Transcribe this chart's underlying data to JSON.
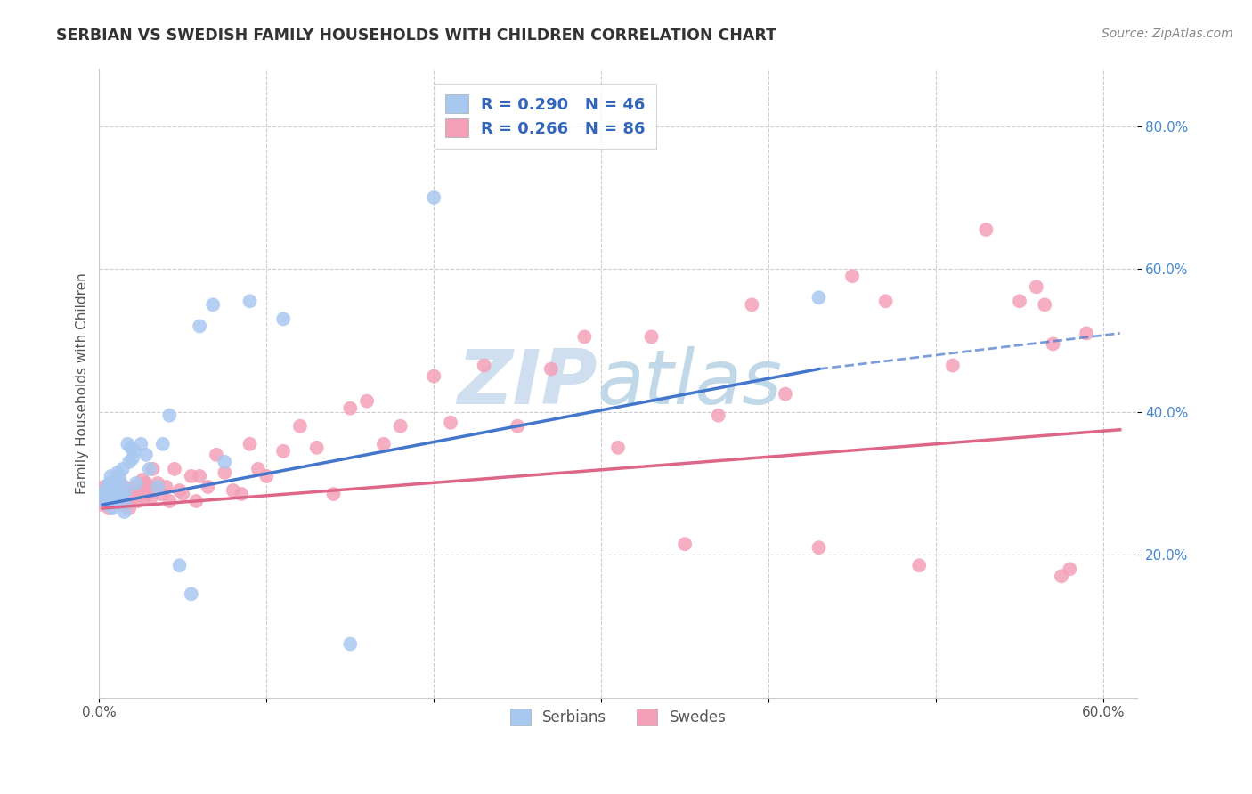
{
  "title": "SERBIAN VS SWEDISH FAMILY HOUSEHOLDS WITH CHILDREN CORRELATION CHART",
  "source": "Source: ZipAtlas.com",
  "ylabel": "Family Households with Children",
  "xlim": [
    0.0,
    0.62
  ],
  "ylim": [
    0.0,
    0.88
  ],
  "xticks": [
    0.0,
    0.1,
    0.2,
    0.3,
    0.4,
    0.5,
    0.6
  ],
  "yticks": [
    0.2,
    0.4,
    0.6,
    0.8
  ],
  "ytick_labels": [
    "20.0%",
    "40.0%",
    "60.0%",
    "80.0%"
  ],
  "xtick_labels": [
    "0.0%",
    "",
    "",
    "",
    "",
    "",
    "60.0%"
  ],
  "serbian_color": "#A8C8F0",
  "swedish_color": "#F4A0B8",
  "trend_serbian_color": "#4477CC",
  "trend_swedish_color": "#DD6688",
  "watermark_text": "ZIPatlas",
  "watermark_color": "#D0DFF0",
  "legend_serbian_label": "R = 0.290   N = 46",
  "legend_swedish_label": "R = 0.266   N = 86",
  "legend_text_color": "#3366BB",
  "bottom_legend_serbians": "Serbians",
  "bottom_legend_swedes": "Swedes",
  "serbian_x": [
    0.002,
    0.003,
    0.004,
    0.005,
    0.005,
    0.006,
    0.006,
    0.007,
    0.007,
    0.008,
    0.008,
    0.009,
    0.01,
    0.01,
    0.011,
    0.011,
    0.012,
    0.012,
    0.013,
    0.013,
    0.014,
    0.015,
    0.015,
    0.016,
    0.017,
    0.018,
    0.019,
    0.02,
    0.021,
    0.022,
    0.025,
    0.028,
    0.03,
    0.035,
    0.038,
    0.042,
    0.048,
    0.055,
    0.06,
    0.068,
    0.075,
    0.09,
    0.11,
    0.15,
    0.2,
    0.43
  ],
  "serbian_y": [
    0.285,
    0.275,
    0.29,
    0.295,
    0.27,
    0.3,
    0.285,
    0.28,
    0.31,
    0.275,
    0.265,
    0.295,
    0.305,
    0.28,
    0.3,
    0.315,
    0.29,
    0.31,
    0.285,
    0.3,
    0.32,
    0.275,
    0.26,
    0.29,
    0.355,
    0.33,
    0.35,
    0.335,
    0.345,
    0.3,
    0.355,
    0.34,
    0.32,
    0.295,
    0.355,
    0.395,
    0.185,
    0.145,
    0.52,
    0.55,
    0.33,
    0.555,
    0.53,
    0.075,
    0.7,
    0.56
  ],
  "swedish_x": [
    0.002,
    0.003,
    0.005,
    0.006,
    0.007,
    0.008,
    0.009,
    0.01,
    0.01,
    0.011,
    0.012,
    0.012,
    0.013,
    0.014,
    0.015,
    0.015,
    0.016,
    0.017,
    0.018,
    0.018,
    0.019,
    0.02,
    0.021,
    0.022,
    0.023,
    0.024,
    0.025,
    0.026,
    0.027,
    0.028,
    0.029,
    0.03,
    0.031,
    0.032,
    0.033,
    0.035,
    0.037,
    0.04,
    0.042,
    0.045,
    0.048,
    0.05,
    0.055,
    0.058,
    0.06,
    0.065,
    0.07,
    0.075,
    0.08,
    0.085,
    0.09,
    0.095,
    0.1,
    0.11,
    0.12,
    0.13,
    0.14,
    0.15,
    0.16,
    0.17,
    0.18,
    0.2,
    0.21,
    0.23,
    0.25,
    0.27,
    0.29,
    0.31,
    0.33,
    0.35,
    0.37,
    0.39,
    0.41,
    0.43,
    0.45,
    0.47,
    0.49,
    0.51,
    0.53,
    0.55,
    0.56,
    0.565,
    0.57,
    0.575,
    0.58,
    0.59
  ],
  "swedish_y": [
    0.27,
    0.295,
    0.28,
    0.265,
    0.29,
    0.285,
    0.275,
    0.3,
    0.28,
    0.285,
    0.275,
    0.295,
    0.285,
    0.27,
    0.28,
    0.295,
    0.285,
    0.275,
    0.285,
    0.265,
    0.29,
    0.28,
    0.285,
    0.295,
    0.275,
    0.285,
    0.29,
    0.305,
    0.28,
    0.3,
    0.285,
    0.295,
    0.28,
    0.32,
    0.29,
    0.3,
    0.285,
    0.295,
    0.275,
    0.32,
    0.29,
    0.285,
    0.31,
    0.275,
    0.31,
    0.295,
    0.34,
    0.315,
    0.29,
    0.285,
    0.355,
    0.32,
    0.31,
    0.345,
    0.38,
    0.35,
    0.285,
    0.405,
    0.415,
    0.355,
    0.38,
    0.45,
    0.385,
    0.465,
    0.38,
    0.46,
    0.505,
    0.35,
    0.505,
    0.215,
    0.395,
    0.55,
    0.425,
    0.21,
    0.59,
    0.555,
    0.185,
    0.465,
    0.655,
    0.555,
    0.575,
    0.55,
    0.495,
    0.17,
    0.18,
    0.51
  ],
  "trend_serb_x_start": 0.002,
  "trend_serb_x_solid_end": 0.43,
  "trend_serb_x_dash_end": 0.61,
  "trend_serb_y_start": 0.27,
  "trend_serb_y_solid_end": 0.46,
  "trend_serb_y_dash_end": 0.51,
  "trend_swed_x_start": 0.002,
  "trend_swed_x_end": 0.61,
  "trend_swed_y_start": 0.265,
  "trend_swed_y_end": 0.375
}
